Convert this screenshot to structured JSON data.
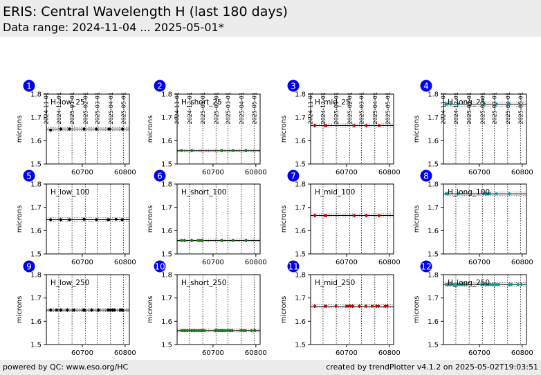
{
  "header": {
    "title": "ERIS: Central Wavelength H (last 180 days)",
    "subtitle": "Data range: 2024-11-04 ... 2025-05-01*"
  },
  "footer": {
    "left": "powered by QC: www.eso.org/HC",
    "right": "created by trendPlotter v4.1.2 on 2025-05-02T19:03:51"
  },
  "colors": {
    "low": "#000000",
    "short": "#1a7a1a",
    "mid": "#cc0000",
    "long": "#009999",
    "badge": "#0000ee"
  },
  "chart_data": {
    "type": "scatter",
    "ylabel": "microns",
    "ylim": [
      1.5,
      1.8
    ],
    "y_ticks": [
      1.5,
      1.6,
      1.7,
      1.8
    ],
    "xlim": [
      60616,
      60810
    ],
    "x_ticks": [
      60700,
      60800
    ],
    "top_date_ticks": [
      {
        "label": "2024-11-01",
        "mjd": 60615
      },
      {
        "label": "2024-12-01",
        "mjd": 60645
      },
      {
        "label": "2025-01-01",
        "mjd": 60676
      },
      {
        "label": "2025-02-01",
        "mjd": 60707
      },
      {
        "label": "2025-03-01",
        "mjd": 60735
      },
      {
        "label": "2025-04-01",
        "mjd": 60766
      },
      {
        "label": "2025-05-01",
        "mjd": 60796
      }
    ],
    "panels": [
      {
        "id": "1",
        "name": "H_low_25",
        "color_key": "low",
        "ref": 1.65,
        "band": [
          1.643,
          1.657
        ],
        "x": [
          60626,
          60650,
          60670,
          60704,
          60733,
          60762,
          60764,
          60794
        ],
        "y": [
          1.645,
          1.65,
          1.65,
          1.65,
          1.65,
          1.65,
          1.65,
          1.65
        ]
      },
      {
        "id": "2",
        "name": "H_short_25",
        "color_key": "short",
        "ref": 1.557,
        "band": [
          1.552,
          1.563
        ],
        "x": [
          60626,
          60650,
          60720,
          60747,
          60777
        ],
        "y": [
          1.558,
          1.558,
          1.558,
          1.558,
          1.558
        ]
      },
      {
        "id": "3",
        "name": "H_mid_25",
        "color_key": "mid",
        "ref": 1.665,
        "band": [
          1.658,
          1.672
        ],
        "x": [
          60626,
          60650,
          60652,
          60718,
          60746,
          60776
        ],
        "y": [
          1.665,
          1.665,
          1.665,
          1.665,
          1.665,
          1.665
        ]
      },
      {
        "id": "4",
        "name": "H_long_25",
        "color_key": "long",
        "ref": 1.757,
        "band": [
          1.749,
          1.766
        ],
        "x": [
          60622,
          60625,
          60633,
          60650,
          60712,
          60740,
          60770
        ],
        "y": [
          1.757,
          1.757,
          1.757,
          1.757,
          1.757,
          1.757,
          1.757
        ]
      },
      {
        "id": "5",
        "name": "H_low_100",
        "color_key": "low",
        "ref": 1.647,
        "band": [
          1.64,
          1.655
        ],
        "x": [
          60626,
          60650,
          60670,
          60704,
          60733,
          60760,
          60762,
          60779,
          60793
        ],
        "y": [
          1.647,
          1.647,
          1.647,
          1.649,
          1.647,
          1.647,
          1.647,
          1.649,
          1.647
        ]
      },
      {
        "id": "6",
        "name": "H_short_100",
        "color_key": "short",
        "ref": 1.558,
        "band": [
          1.552,
          1.564
        ],
        "x": [
          60626,
          60633,
          60650,
          60665,
          60670,
          60675,
          60720,
          60747,
          60777
        ],
        "y": [
          1.558,
          1.558,
          1.558,
          1.558,
          1.558,
          1.558,
          1.558,
          1.558,
          1.558
        ]
      },
      {
        "id": "7",
        "name": "H_mid_100",
        "color_key": "mid",
        "ref": 1.665,
        "band": [
          1.658,
          1.672
        ],
        "x": [
          60626,
          60650,
          60652,
          60718,
          60746,
          60776
        ],
        "y": [
          1.665,
          1.665,
          1.665,
          1.665,
          1.665,
          1.665
        ]
      },
      {
        "id": "8",
        "name": "H_long_100",
        "color_key": "long",
        "ref": 1.758,
        "band": [
          1.75,
          1.766
        ],
        "x": [
          60622,
          60625,
          60650,
          60710,
          60715,
          60720,
          60725,
          60740,
          60770
        ],
        "y": [
          1.758,
          1.758,
          1.758,
          1.758,
          1.758,
          1.758,
          1.758,
          1.758,
          1.758
        ]
      },
      {
        "id": "9",
        "name": "H_low_250",
        "color_key": "low",
        "ref": 1.648,
        "band": [
          1.641,
          1.655
        ],
        "x": [
          60626,
          60640,
          60650,
          60665,
          60680,
          60703,
          60705,
          60722,
          60738,
          60760,
          60764,
          60770,
          60775,
          60789,
          60791,
          60794
        ],
        "y": [
          1.648,
          1.648,
          1.648,
          1.648,
          1.648,
          1.648,
          1.648,
          1.648,
          1.648,
          1.648,
          1.648,
          1.648,
          1.648,
          1.648,
          1.648,
          1.648
        ]
      },
      {
        "id": "10",
        "name": "H_short_250",
        "color_key": "short",
        "ref": 1.56,
        "band": [
          1.554,
          1.566
        ],
        "x": [
          60626,
          60630,
          60634,
          60640,
          60645,
          60650,
          60655,
          60660,
          60665,
          60670,
          60675,
          60680,
          60705,
          60708,
          60712,
          60716,
          60720,
          60725,
          60730,
          60735,
          60740,
          60745,
          60765,
          60770,
          60775,
          60790,
          60798
        ],
        "y": [
          1.56,
          1.56,
          1.56,
          1.56,
          1.56,
          1.56,
          1.56,
          1.56,
          1.56,
          1.56,
          1.56,
          1.56,
          1.56,
          1.56,
          1.56,
          1.56,
          1.56,
          1.56,
          1.56,
          1.56,
          1.56,
          1.56,
          1.56,
          1.56,
          1.56,
          1.56,
          1.56
        ]
      },
      {
        "id": "11",
        "name": "H_mid_250",
        "color_key": "mid",
        "ref": 1.665,
        "band": [
          1.658,
          1.672
        ],
        "x": [
          60626,
          60650,
          60652,
          60675,
          60700,
          60705,
          60710,
          60715,
          60730,
          60745,
          60760,
          60770,
          60775,
          60790,
          60795
        ],
        "y": [
          1.665,
          1.665,
          1.665,
          1.665,
          1.665,
          1.665,
          1.665,
          1.665,
          1.665,
          1.665,
          1.665,
          1.665,
          1.665,
          1.665,
          1.665
        ]
      },
      {
        "id": "12",
        "name": "H_long_250",
        "color_key": "long",
        "ref": 1.758,
        "band": [
          1.75,
          1.766
        ],
        "x": [
          60622,
          60626,
          60630,
          60634,
          60640,
          60645,
          60650,
          60655,
          60660,
          60665,
          60670,
          60705,
          60710,
          60715,
          60720,
          60725,
          60730,
          60735,
          60740,
          60745,
          60770,
          60775,
          60790,
          60798
        ],
        "y": [
          1.758,
          1.758,
          1.758,
          1.758,
          1.758,
          1.758,
          1.758,
          1.758,
          1.758,
          1.758,
          1.758,
          1.758,
          1.758,
          1.758,
          1.758,
          1.758,
          1.758,
          1.758,
          1.758,
          1.758,
          1.758,
          1.758,
          1.758,
          1.758
        ]
      }
    ]
  }
}
